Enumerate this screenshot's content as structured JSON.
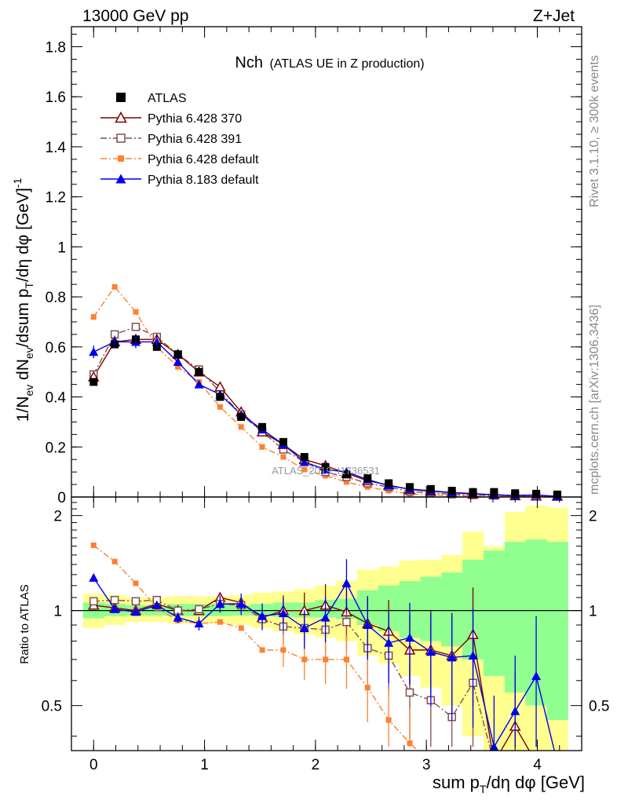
{
  "header": {
    "energy_label": "13000 GeV pp",
    "process_label": "Z+Jet"
  },
  "side_labels": {
    "rivet": "Rivet 3.1.10, ≥ 300k events",
    "mcplots": "mcplots.cern.ch [arXiv:1306.3436]"
  },
  "watermark": "ATLAS_2019_I1736531",
  "colors": {
    "atlas": "#000000",
    "p6_370": "#7f0000",
    "p6_391": "#7f4f4f",
    "p6_default": "#ff8030",
    "p8_default": "#0000ee",
    "band_inner": "#90ff90",
    "band_outer": "#ffff90"
  },
  "chart_data": {
    "type": "line",
    "title": "Nch",
    "subtitle": "(ATLAS UE in Z production)",
    "xlabel": "sum p_T/dη dφ [GeV]",
    "ylabel": "1/N_ev dN_ev/dsum p_T/dη dφ [GeV]^-1",
    "ratio_ylabel": "Ratio to ATLAS",
    "xlim": [
      -0.2,
      4.4
    ],
    "ylim": [
      0,
      1.88
    ],
    "ratio_ylim": [
      0.36,
      2.29
    ],
    "x_ticks": [
      "0",
      "1",
      "2",
      "3",
      "4"
    ],
    "y_ticks": [
      "0",
      "0.2",
      "0.4",
      "0.6",
      "0.8",
      "1",
      "1.2",
      "1.4",
      "1.6",
      "1.8"
    ],
    "ratio_ticks": [
      "0.5",
      "1",
      "2"
    ],
    "legend": [
      "ATLAS",
      "Pythia 6.428 370",
      "Pythia 6.428 391",
      "Pythia 6.428 default",
      "Pythia 8.183 default"
    ],
    "x": [
      0,
      0.19,
      0.38,
      0.57,
      0.76,
      0.95,
      1.14,
      1.33,
      1.52,
      1.71,
      1.9,
      2.09,
      2.28,
      2.47,
      2.66,
      2.85,
      3.04,
      3.23,
      3.42,
      3.61,
      3.8,
      3.99,
      4.18
    ],
    "series": [
      {
        "name": "ATLAS",
        "values": [
          0.46,
          0.61,
          0.63,
          0.6,
          0.57,
          0.5,
          0.4,
          0.32,
          0.28,
          0.22,
          0.16,
          0.12,
          0.09,
          0.075,
          0.055,
          0.04,
          0.032,
          0.025,
          0.02,
          0.02,
          0.015,
          0.013,
          0.01
        ]
      },
      {
        "name": "Pythia 6.428 370",
        "values": [
          0.48,
          0.62,
          0.63,
          0.63,
          0.57,
          0.5,
          0.44,
          0.34,
          0.26,
          0.21,
          0.15,
          0.125,
          0.095,
          0.065,
          0.048,
          0.03,
          0.023,
          0.017,
          0.012,
          0.01,
          0.005,
          0.004,
          0.003
        ]
      },
      {
        "name": "Pythia 6.428 391",
        "values": [
          0.49,
          0.65,
          0.68,
          0.64,
          0.57,
          0.51,
          0.42,
          0.33,
          0.26,
          0.19,
          0.14,
          0.1,
          0.08,
          0.055,
          0.04,
          0.022,
          0.016,
          0.011,
          0.008,
          0.006,
          0.005,
          0.004,
          0.003
        ]
      },
      {
        "name": "Pythia 6.428 default",
        "values": [
          0.72,
          0.84,
          0.74,
          0.6,
          0.52,
          0.46,
          0.36,
          0.28,
          0.2,
          0.16,
          0.11,
          0.085,
          0.06,
          0.04,
          0.025,
          0.012,
          0.009,
          0.006,
          0.004,
          0.003,
          0.002,
          0.002,
          0.001
        ]
      },
      {
        "name": "Pythia 8.183 default",
        "values": [
          0.58,
          0.62,
          0.62,
          0.62,
          0.54,
          0.45,
          0.41,
          0.33,
          0.27,
          0.21,
          0.14,
          0.11,
          0.1,
          0.07,
          0.045,
          0.032,
          0.025,
          0.018,
          0.014,
          0.008,
          0.007,
          0.008,
          0.003
        ]
      }
    ],
    "ratio_series": [
      {
        "name": "Pythia 6.428 370",
        "values": [
          1.04,
          1.02,
          1.0,
          1.05,
          1.0,
          1.0,
          1.1,
          1.06,
          0.95,
          1.0,
          1.0,
          1.04,
          0.99,
          0.91,
          0.86,
          0.75,
          0.75,
          0.72,
          0.84,
          0.33,
          0.43,
          0.33,
          0.33
        ]
      },
      {
        "name": "Pythia 6.428 391",
        "values": [
          1.07,
          1.08,
          1.07,
          1.08,
          1.0,
          1.01,
          1.05,
          1.04,
          0.94,
          0.89,
          0.88,
          0.87,
          0.92,
          0.76,
          0.72,
          0.55,
          0.52,
          0.46,
          0.59,
          0.33,
          0.33,
          0.33,
          0.33
        ]
      },
      {
        "name": "Pythia 6.428 default",
        "values": [
          1.61,
          1.43,
          1.22,
          1.02,
          0.93,
          0.91,
          0.92,
          0.88,
          0.75,
          0.75,
          0.7,
          0.7,
          0.7,
          0.57,
          0.45,
          0.38,
          0.33,
          0.33,
          0.33,
          0.33,
          0.33,
          0.33,
          0.33
        ]
      },
      {
        "name": "Pythia 8.183 default",
        "values": [
          1.27,
          1.01,
          0.99,
          1.04,
          0.95,
          0.91,
          1.05,
          1.05,
          0.96,
          0.98,
          0.88,
          0.95,
          1.22,
          0.9,
          0.79,
          0.82,
          0.74,
          0.71,
          0.72,
          0.37,
          0.48,
          0.62,
          0.33
        ]
      }
    ],
    "ratio_band_inner": [
      [
        0.945,
        1.06
      ],
      [
        0.96,
        1.05
      ],
      [
        0.965,
        1.04
      ],
      [
        0.965,
        1.04
      ],
      [
        0.96,
        1.05
      ],
      [
        0.96,
        1.05
      ],
      [
        0.96,
        1.05
      ],
      [
        0.965,
        1.04
      ],
      [
        0.96,
        1.05
      ],
      [
        0.955,
        1.06
      ],
      [
        0.95,
        1.06
      ],
      [
        0.95,
        1.08
      ],
      [
        0.94,
        1.09
      ],
      [
        0.9,
        1.16
      ],
      [
        0.86,
        1.2
      ],
      [
        0.82,
        1.24
      ],
      [
        0.8,
        1.28
      ],
      [
        0.77,
        1.32
      ],
      [
        0.7,
        1.45
      ],
      [
        0.62,
        1.55
      ],
      [
        0.55,
        1.65
      ],
      [
        0.5,
        1.68
      ],
      [
        0.45,
        1.65
      ]
    ],
    "ratio_band_outer": [
      [
        0.88,
        1.13
      ],
      [
        0.9,
        1.12
      ],
      [
        0.92,
        1.1
      ],
      [
        0.92,
        1.1
      ],
      [
        0.91,
        1.11
      ],
      [
        0.91,
        1.11
      ],
      [
        0.91,
        1.11
      ],
      [
        0.9,
        1.12
      ],
      [
        0.88,
        1.14
      ],
      [
        0.86,
        1.15
      ],
      [
        0.84,
        1.17
      ],
      [
        0.82,
        1.2
      ],
      [
        0.8,
        1.24
      ],
      [
        0.72,
        1.35
      ],
      [
        0.68,
        1.38
      ],
      [
        0.62,
        1.44
      ],
      [
        0.57,
        1.45
      ],
      [
        0.5,
        1.5
      ],
      [
        0.4,
        1.78
      ],
      [
        0.36,
        1.6
      ],
      [
        0.36,
        2.05
      ],
      [
        0.36,
        2.15
      ],
      [
        0.36,
        2.12
      ]
    ]
  }
}
